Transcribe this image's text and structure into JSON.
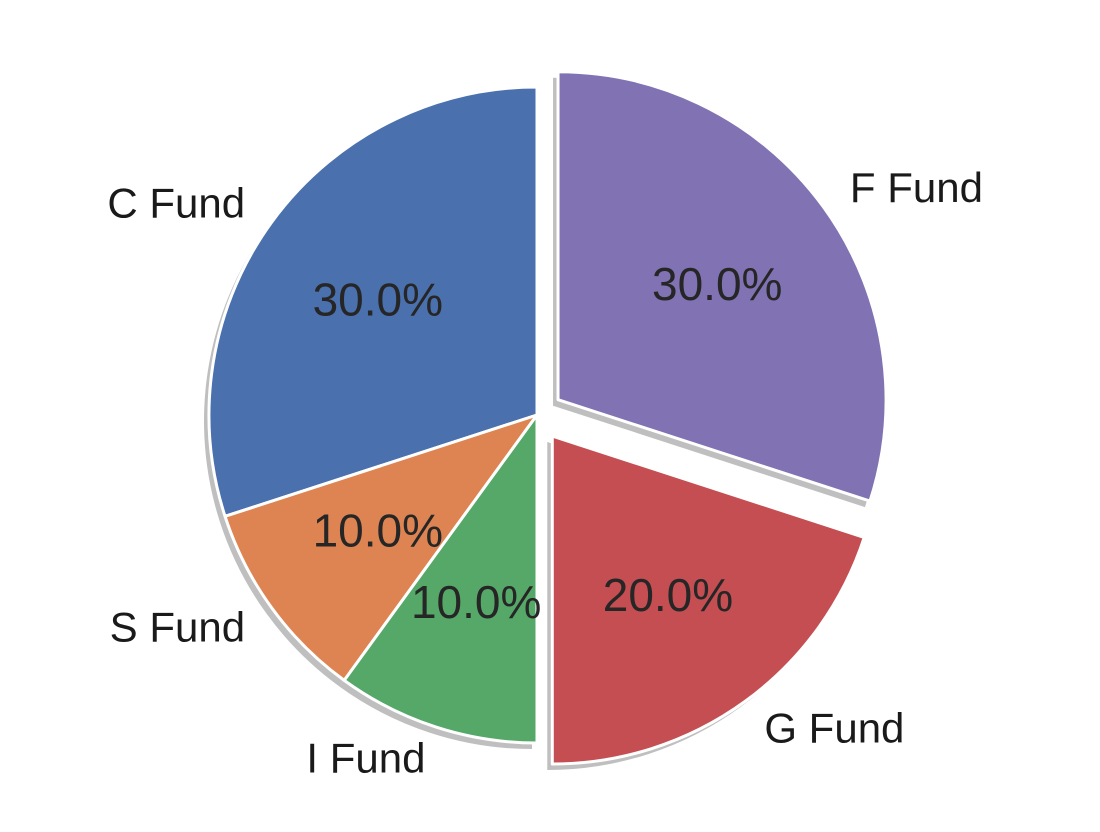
{
  "chart_data": {
    "type": "pie",
    "categories": [
      "C Fund",
      "S Fund",
      "I Fund",
      "G Fund",
      "F Fund"
    ],
    "values": [
      30,
      10,
      10,
      20,
      30
    ],
    "labels": [
      "30.0%",
      "10.0%",
      "10.0%",
      "20.0%",
      "30.0%"
    ],
    "colors": [
      "#4a70ae",
      "#dd8452",
      "#55a868",
      "#c44e52",
      "#8172b3"
    ],
    "exploded": [
      "G Fund",
      "F Fund"
    ],
    "shadow": true
  }
}
